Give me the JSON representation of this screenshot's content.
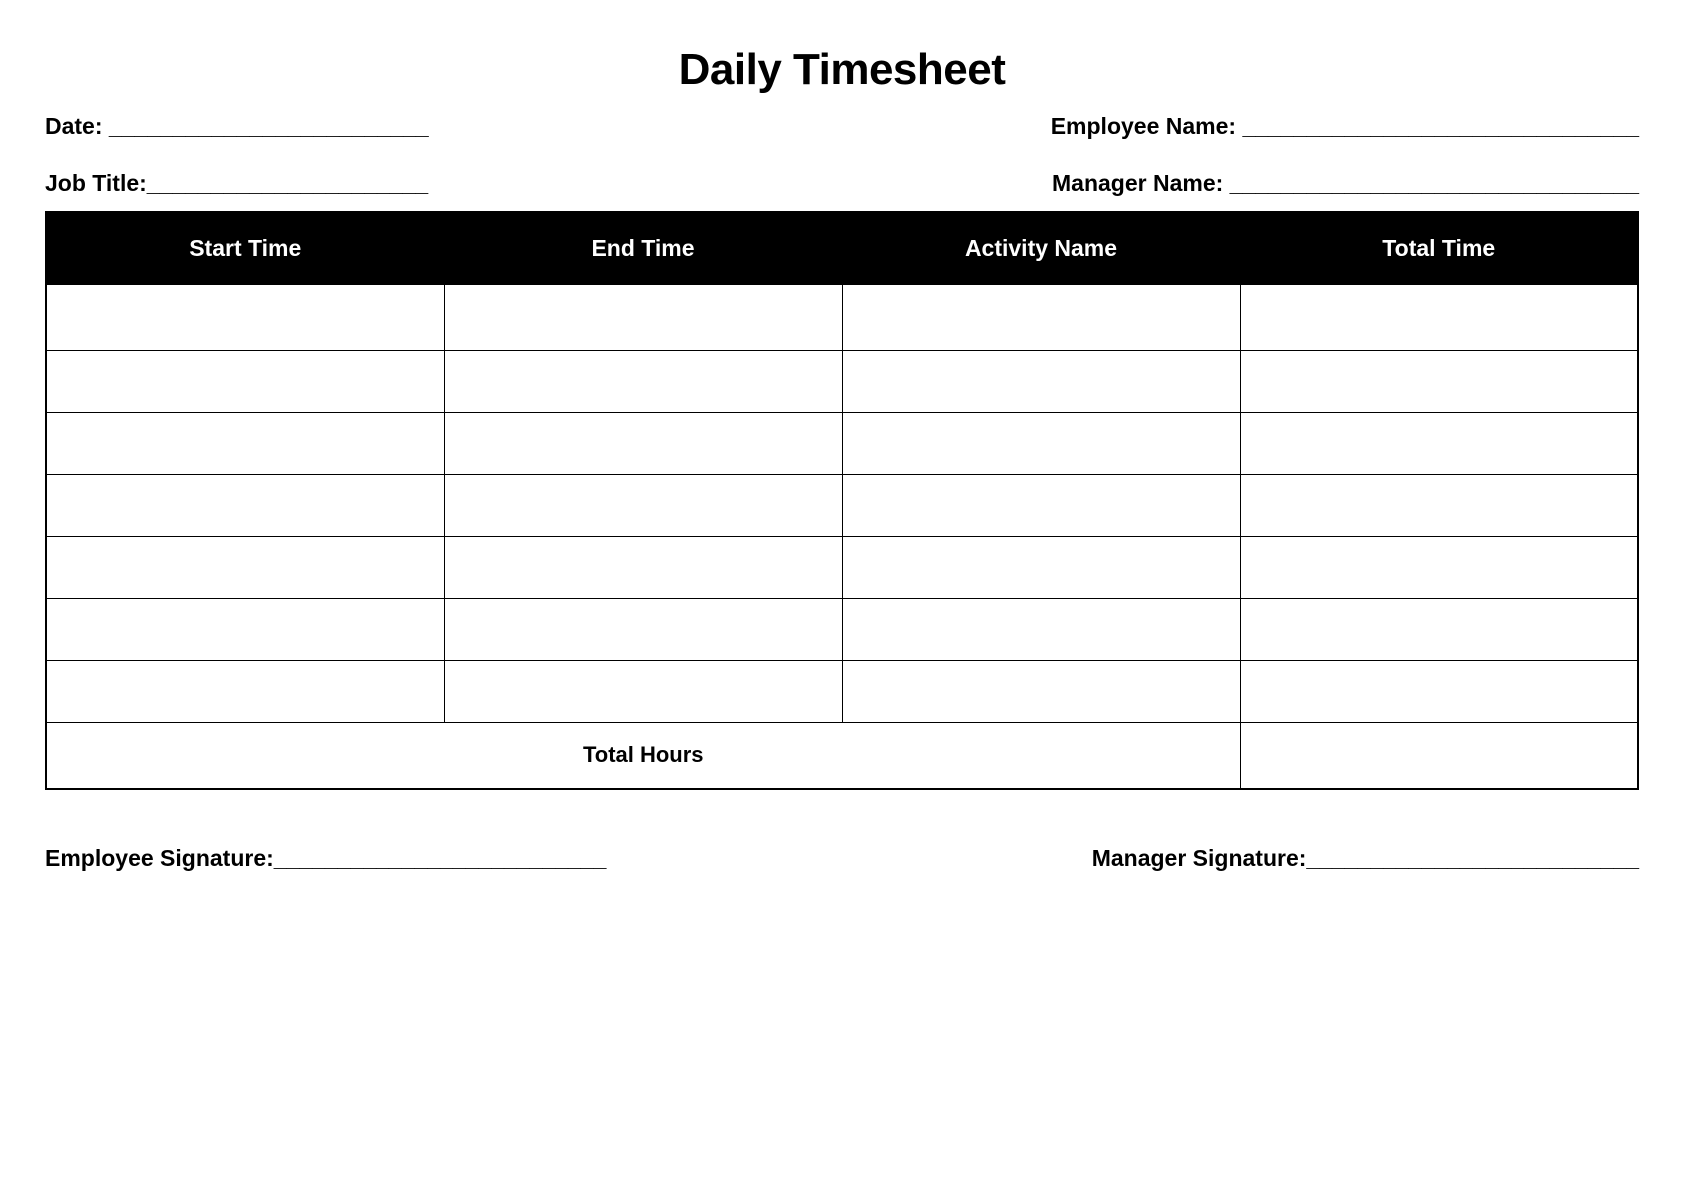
{
  "title": "Daily Timesheet",
  "fields": {
    "date_label": "Date: _________________________",
    "employee_name_label": "Employee Name: _______________________________",
    "job_title_label": "Job Title:______________________",
    "manager_name_label": "Manager Name: ________________________________"
  },
  "table": {
    "columns": [
      "Start Time",
      "End Time",
      "Activity Name",
      "Total Time"
    ],
    "header_bg": "#000000",
    "header_fg": "#ffffff",
    "border_color": "#000000",
    "row_count": 7,
    "total_label": "Total Hours"
  },
  "signatures": {
    "employee_label": "Employee Signature:__________________________",
    "manager_label": "Manager Signature:__________________________"
  }
}
